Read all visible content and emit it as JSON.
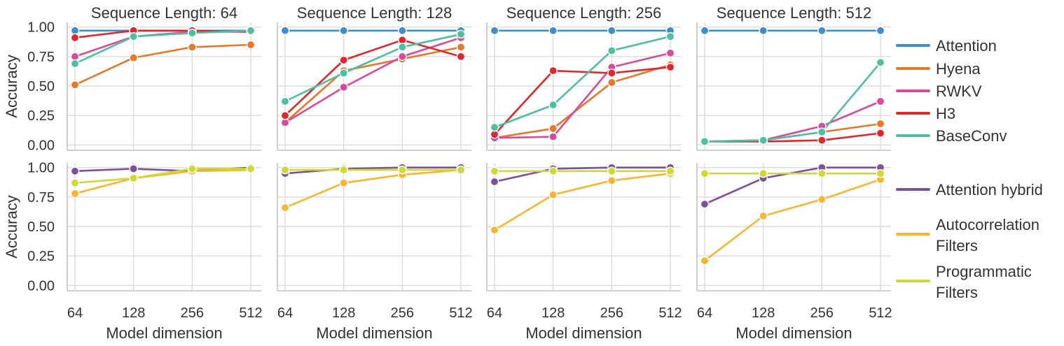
{
  "chart_data": {
    "type": "line",
    "x": [
      "64",
      "128",
      "256",
      "512"
    ],
    "xlabel": "Model dimension",
    "ylabel": "Accuracy",
    "ylim": [
      0,
      1
    ],
    "yticks": [
      "0.00",
      "0.25",
      "0.50",
      "0.75",
      "1.00"
    ],
    "grid": true,
    "columns": [
      {
        "title": "Sequence Length: 64"
      },
      {
        "title": "Sequence Length: 128"
      },
      {
        "title": "Sequence Length: 256"
      },
      {
        "title": "Sequence Length: 512"
      }
    ],
    "rows": [
      {
        "legend": "right",
        "series": [
          {
            "name": "Attention",
            "color": "#3b8fce",
            "values": [
              [
                0.97,
                0.97,
                0.97,
                0.97
              ],
              [
                0.97,
                0.97,
                0.97,
                0.97
              ],
              [
                0.97,
                0.97,
                0.97,
                0.97
              ],
              [
                0.97,
                0.97,
                0.97,
                0.97
              ]
            ]
          },
          {
            "name": "Hyena",
            "color": "#ea7628",
            "values": [
              [
                0.51,
                0.74,
                0.83,
                0.85
              ],
              [
                0.19,
                0.63,
                0.73,
                0.83
              ],
              [
                0.06,
                0.14,
                0.53,
                0.68
              ],
              [
                0.03,
                0.04,
                0.11,
                0.18
              ]
            ]
          },
          {
            "name": "RWKV",
            "color": "#d94a9b",
            "values": [
              [
                0.75,
                0.92,
                0.96,
                0.96
              ],
              [
                0.19,
                0.49,
                0.75,
                0.91
              ],
              [
                0.06,
                0.07,
                0.66,
                0.78
              ],
              [
                0.03,
                0.04,
                0.16,
                0.37
              ]
            ]
          },
          {
            "name": "H3",
            "color": "#e3262c",
            "values": [
              [
                0.91,
                0.97,
                0.97,
                0.96
              ],
              [
                0.25,
                0.72,
                0.89,
                0.75
              ],
              [
                0.09,
                0.63,
                0.61,
                0.66
              ],
              [
                0.03,
                0.03,
                0.04,
                0.1
              ]
            ]
          },
          {
            "name": "BaseConv",
            "color": "#4cc0a0",
            "values": [
              [
                0.69,
                0.92,
                0.95,
                0.97
              ],
              [
                0.37,
                0.61,
                0.83,
                0.94
              ],
              [
                0.15,
                0.34,
                0.8,
                0.92
              ],
              [
                0.03,
                0.04,
                0.11,
                0.7
              ]
            ]
          }
        ]
      },
      {
        "legend": "right",
        "series": [
          {
            "name": "Attention hybrid",
            "color": "#7e4f9d",
            "values": [
              [
                0.97,
                0.99,
                0.97,
                1.0
              ],
              [
                0.95,
                0.99,
                1.0,
                1.0
              ],
              [
                0.88,
                0.99,
                1.0,
                1.0
              ],
              [
                0.69,
                0.91,
                1.0,
                1.0
              ]
            ]
          },
          {
            "name": "Autocorrelation Filters",
            "label_lines": [
              "Autocorrelation",
              "Filters"
            ],
            "color": "#f9b52f",
            "values": [
              [
                0.78,
                0.91,
                0.97,
                0.98
              ],
              [
                0.66,
                0.87,
                0.94,
                0.98
              ],
              [
                0.47,
                0.77,
                0.89,
                0.95
              ],
              [
                0.21,
                0.59,
                0.73,
                0.9
              ]
            ]
          },
          {
            "name": "Programmatic Filters",
            "label_lines": [
              "Programmatic",
              "Filters"
            ],
            "color": "#cfd930",
            "values": [
              [
                0.87,
                0.91,
                0.99,
                0.99
              ],
              [
                0.98,
                0.98,
                0.98,
                0.98
              ],
              [
                0.97,
                0.97,
                0.97,
                0.97
              ],
              [
                0.95,
                0.95,
                0.95,
                0.95
              ]
            ]
          }
        ]
      }
    ]
  }
}
